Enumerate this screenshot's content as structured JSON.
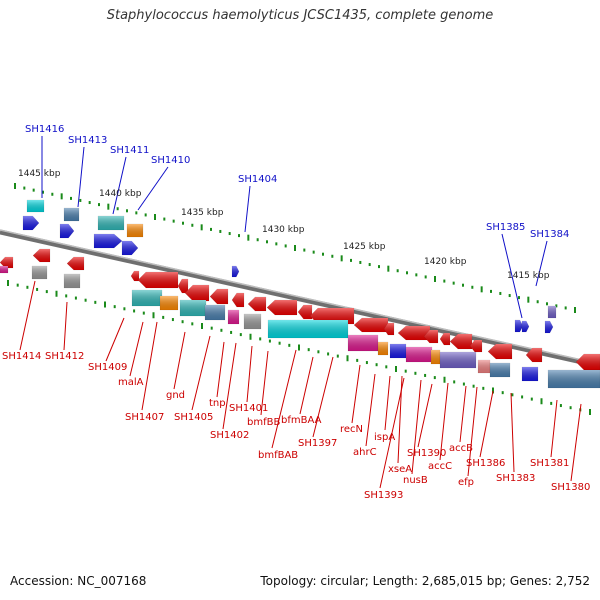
{
  "title": "Staphylococcus haemolyticus JCSC1435, complete genome",
  "footer": {
    "accession": "Accession: NC_007168",
    "topology": "Topology: circular; Length: 2,685,015 bp; Genes: 2,752"
  },
  "scale_labels": [
    "1445 kbp",
    "1440 kbp",
    "1435 kbp",
    "1430 kbp",
    "1425 kbp",
    "1420 kbp",
    "1415 kbp"
  ],
  "top_gene_labels": [
    "SH1416",
    "SH1413",
    "SH1411",
    "SH1410",
    "SH1404",
    "SH1385",
    "SH1384"
  ],
  "bottom_gene_labels": [
    "SH1414",
    "SH1412",
    "SH1409",
    "malA",
    "SH1407",
    "gnd",
    "SH1405",
    "tnp",
    "SH1402",
    "SH1401",
    "bmfBB",
    "bmfBAB",
    "bfmBAA",
    "SH1397",
    "recN",
    "ahrC",
    "ispA",
    "xseA",
    "SH1393",
    "nusB",
    "SH1390",
    "accC",
    "accB",
    "efp",
    "SH1386",
    "SH1383",
    "SH1381",
    "SH1380"
  ],
  "colors": {
    "red": "#ee0000",
    "cyan": "#00d8e0",
    "teal": "#30b8b8",
    "steel": "#4a80b0",
    "orange": "#ff8800",
    "blue": "#1818e8",
    "magenta": "#e01890",
    "purple": "#7060c8",
    "gray": "#9a9a9a",
    "pink": "#f08080",
    "green": "#1a8a1a",
    "backbone": "#777777"
  }
}
